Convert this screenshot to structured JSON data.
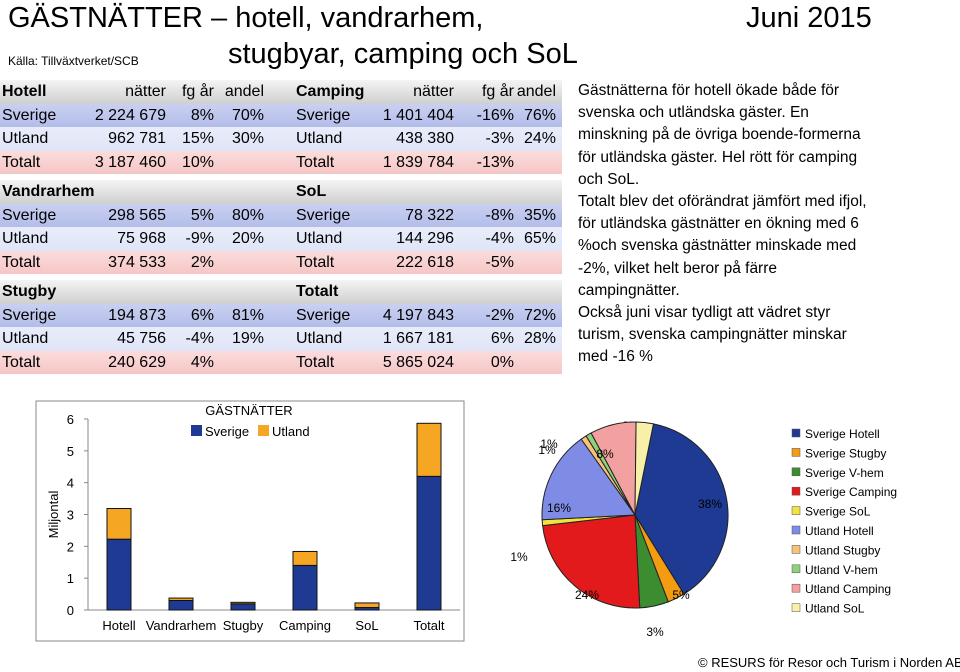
{
  "header": {
    "title_line1": "GÄSTNÄTTER – hotell, vandrarhem,",
    "title_line2": "stugbyar, camping och SoL",
    "month": "Juni 2015",
    "source": "Källa: Tillväxtverket/SCB"
  },
  "table": {
    "col_headers": {
      "nights": "nätter",
      "change": "fg år",
      "share": "andel"
    },
    "blocks": [
      {
        "left": {
          "title": "Hotell",
          "rows": [
            {
              "label": "Sverige",
              "nights": "2 224 679",
              "change": "8%",
              "share": "70%"
            },
            {
              "label": "Utland",
              "nights": "962 781",
              "change": "15%",
              "share": "30%"
            },
            {
              "label": "Totalt",
              "nights": "3 187 460",
              "change": "10%",
              "share": ""
            }
          ]
        },
        "right": {
          "title": "Camping",
          "rows": [
            {
              "label": "Sverige",
              "nights": "1 401 404",
              "change": "-16%",
              "share": "76%"
            },
            {
              "label": "Utland",
              "nights": "438 380",
              "change": "-3%",
              "share": "24%"
            },
            {
              "label": "Totalt",
              "nights": "1 839 784",
              "change": "-13%",
              "share": ""
            }
          ]
        }
      },
      {
        "left": {
          "title": "Vandrarhem",
          "rows": [
            {
              "label": "Sverige",
              "nights": "298 565",
              "change": "5%",
              "share": "80%"
            },
            {
              "label": "Utland",
              "nights": "75 968",
              "change": "-9%",
              "share": "20%"
            },
            {
              "label": "Totalt",
              "nights": "374 533",
              "change": "2%",
              "share": ""
            }
          ]
        },
        "right": {
          "title": "SoL",
          "rows": [
            {
              "label": "Sverige",
              "nights": "78 322",
              "change": "-8%",
              "share": "35%"
            },
            {
              "label": "Utland",
              "nights": "144 296",
              "change": "-4%",
              "share": "65%"
            },
            {
              "label": "Totalt",
              "nights": "222 618",
              "change": "-5%",
              "share": ""
            }
          ]
        }
      },
      {
        "left": {
          "title": "Stugby",
          "rows": [
            {
              "label": "Sverige",
              "nights": "194 873",
              "change": "6%",
              "share": "81%"
            },
            {
              "label": "Utland",
              "nights": "45 756",
              "change": "-4%",
              "share": "19%"
            },
            {
              "label": "Totalt",
              "nights": "240 629",
              "change": "4%",
              "share": ""
            }
          ]
        },
        "right": {
          "title": "Totalt",
          "rows": [
            {
              "label": "Sverige",
              "nights": "4 197 843",
              "change": "-2%",
              "share": "72%"
            },
            {
              "label": "Utland",
              "nights": "1 667 181",
              "change": "6%",
              "share": "28%"
            },
            {
              "label": "Totalt",
              "nights": "5 865 024",
              "change": "0%",
              "share": ""
            }
          ]
        }
      }
    ]
  },
  "commentary": [
    "Gästnätterna för hotell ökade både för svenska och utländska gäster. En minskning på de övriga boende-formerna för utländska gäster. Hel rött för camping och SoL.",
    "Totalt blev det oförändrat jämfört med ifjol, för utländska gästnätter en ökning med 6 %och svenska gästnätter minskade med -2%, vilket helt beror på färre campingnätter.",
    "Också juni visar tydligt att vädret styr turism, svenska campingnätter minskar med -16 %"
  ],
  "footer": {
    "copyright": "© RESURS för Resor och Turism i Norden AB"
  },
  "chart_data": [
    {
      "type": "bar",
      "stacked": true,
      "title": "GÄSTNÄTTER",
      "ylabel": "Miljontal",
      "ylim": [
        0,
        6
      ],
      "yticks": [
        "0",
        "1",
        "2",
        "3",
        "4",
        "5",
        "6"
      ],
      "categories": [
        "Hotell",
        "Vandrarhem",
        "Stugby",
        "Camping",
        "SoL",
        "Totalt"
      ],
      "series": [
        {
          "name": "Sverige",
          "color": "#1f3a93",
          "values": [
            2.225,
            0.299,
            0.195,
            1.401,
            0.078,
            4.198
          ]
        },
        {
          "name": "Utland",
          "color": "#f5a623",
          "values": [
            0.963,
            0.076,
            0.046,
            0.438,
            0.144,
            1.667
          ]
        }
      ],
      "legend_position": "top"
    },
    {
      "type": "pie",
      "legend_position": "right",
      "slices": [
        {
          "name": "Sverige Hotell",
          "value": 38,
          "label": "38%",
          "color": "#1f3a93"
        },
        {
          "name": "Sverige Stugby",
          "value": 3,
          "label": "3%",
          "color": "#f39c12"
        },
        {
          "name": "Sverige V-hem",
          "value": 5,
          "label": "5%",
          "color": "#3c8d2f"
        },
        {
          "name": "Sverige Camping",
          "value": 24,
          "label": "24%",
          "color": "#e31a1c"
        },
        {
          "name": "Sverige SoL",
          "value": 1,
          "label": "1%",
          "color": "#f1e33b"
        },
        {
          "name": "Utland Hotell",
          "value": 16,
          "label": "16%",
          "color": "#7f8ce6"
        },
        {
          "name": "Utland Stugby",
          "value": 1,
          "label": "1%",
          "color": "#f8c27a"
        },
        {
          "name": "Utland V-hem",
          "value": 1,
          "label": "1%",
          "color": "#8fd17a"
        },
        {
          "name": "Utland Camping",
          "value": 8,
          "label": "8%",
          "color": "#f3a0a0"
        },
        {
          "name": "Utland SoL",
          "value": 3,
          "label": "3%",
          "color": "#f8f0a8"
        }
      ]
    }
  ]
}
